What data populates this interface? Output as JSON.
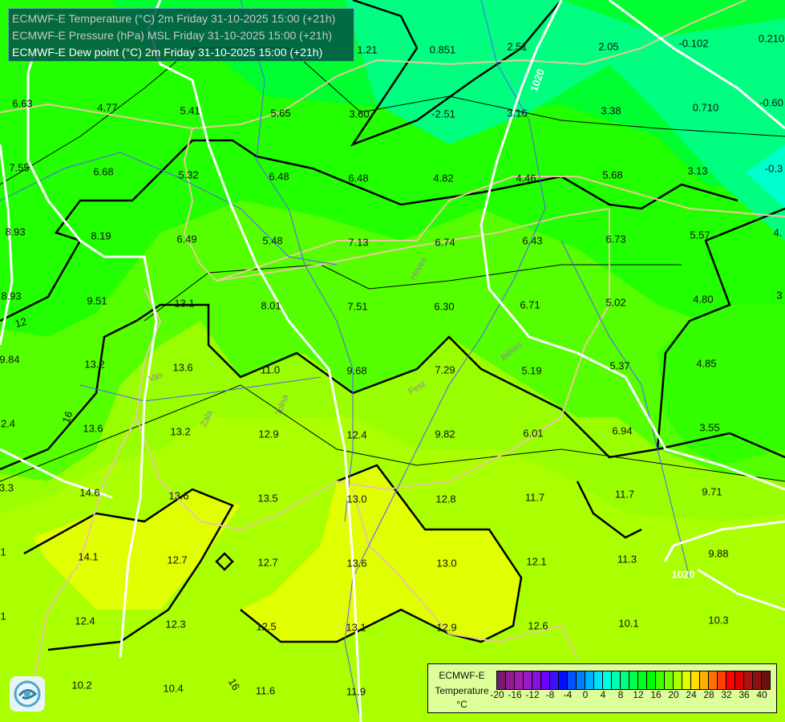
{
  "header": {
    "line1": "ECMWF-E Temperature (°C) 2m Friday 31-10-2025 15:00 (+21h)",
    "line2": "ECMWF-E Pressure (hPa) MSL Friday 31-10-2025 15:00 (+21h)",
    "line3": "ECMWF-E Dew point (°C) 2m Friday 31-10-2025 15:00 (+21h)"
  },
  "map": {
    "dew_point_values": [
      "1.21",
      "0.851",
      "2.51",
      "2.05",
      "-0.102",
      "0.210",
      "6.63",
      "4.77",
      "5.41",
      "5.65",
      "3.60",
      "-2.51",
      "3.16",
      "3.38",
      "0.710",
      "-0.60",
      "7.55",
      "6.68",
      "5.32",
      "6.48",
      "6.48",
      "4.82",
      "4.46",
      "5.68",
      "3.13",
      "-0.3",
      "8.93",
      "8.19",
      "6.49",
      "5.48",
      "7.13",
      "6.74",
      "6.43",
      "6.73",
      "5.57",
      "4.",
      "8.93",
      "9.51",
      "13.1",
      "8.01",
      "7.51",
      "6.30",
      "6.71",
      "5.02",
      "4.80",
      "3",
      "9.84",
      "13.2",
      "13.6",
      "11.0",
      "9.68",
      "7.29",
      "5.19",
      "5.37",
      "4.85",
      "2.4",
      "13.6",
      "13.2",
      "12.9",
      "12.4",
      "9.82",
      "6.01",
      "6.94",
      "3.55",
      "3.3",
      "14.6",
      "13.6",
      "13.5",
      "13.0",
      "12.8",
      "11.7",
      "11.7",
      "9.71",
      "1",
      "14.1",
      "12.7",
      "12.7",
      "13.6",
      "13.0",
      "12.1",
      "11.3",
      "9.88",
      "1",
      "12.4",
      "12.3",
      "12.5",
      "13.1",
      "12.9",
      "12.6",
      "10.1",
      "10.3",
      "10.2",
      "10.4",
      "11.6",
      "11.9"
    ],
    "isobar_labels": [
      "1020",
      "1020"
    ],
    "temperature_contour_labels": [
      "12",
      "16",
      "16"
    ],
    "region_labels": [
      "Vas",
      "Zala",
      "Tolna",
      "Heves",
      "Pest",
      "Békés"
    ],
    "colors": {
      "isobar": "#ffffff",
      "border": "#e8c89a",
      "river": "#5a5aff",
      "contour": "#000000"
    }
  },
  "legend": {
    "title": "ECMWF-E",
    "variable": "Temperature",
    "unit": "°C",
    "ticks": [
      "-20",
      "-16",
      "-12",
      "-8",
      "-4",
      "0",
      "4",
      "8",
      "12",
      "16",
      "20",
      "24",
      "28",
      "32",
      "36",
      "40"
    ],
    "colors": [
      "#7a1a6e",
      "#951a95",
      "#a31ab0",
      "#9a1ac8",
      "#8a10e0",
      "#7000ff",
      "#3a10ff",
      "#0010ff",
      "#0050ff",
      "#0080ff",
      "#00b0ff",
      "#00e0ff",
      "#00ffe0",
      "#00ffb0",
      "#00ff80",
      "#00ff50",
      "#00ff20",
      "#00ff00",
      "#40ff00",
      "#70ff00",
      "#aaff00",
      "#e0ff00",
      "#ffe000",
      "#ffb000",
      "#ff7000",
      "#ff4000",
      "#ff0000",
      "#dd0000",
      "#b01010",
      "#901010",
      "#6a1010"
    ]
  }
}
